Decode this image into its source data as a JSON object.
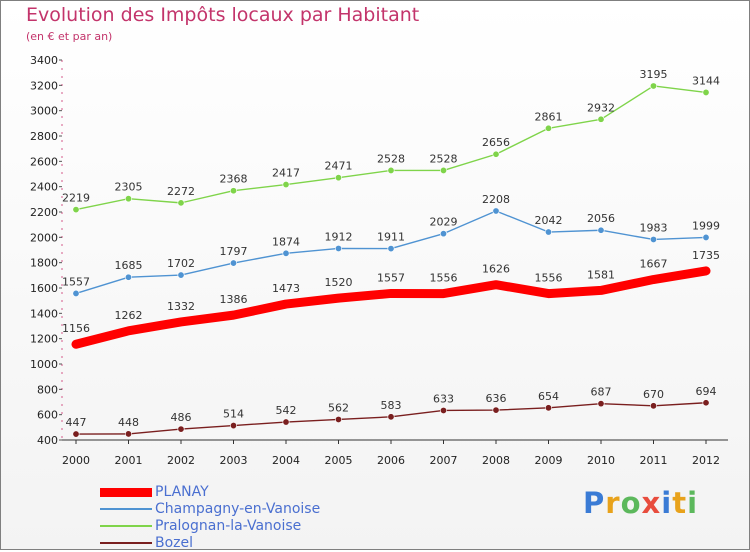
{
  "chart_data": {
    "type": "line",
    "title": "Evolution des Impôts locaux par Habitant",
    "subtitle": "(en € et par an)",
    "x": [
      "2000",
      "2001",
      "2002",
      "2003",
      "2004",
      "2005",
      "2006",
      "2007",
      "2008",
      "2009",
      "2010",
      "2011",
      "2012"
    ],
    "ylim": [
      400,
      3400
    ],
    "yticks": [
      400,
      600,
      800,
      1000,
      1200,
      1400,
      1600,
      1800,
      2000,
      2200,
      2400,
      2600,
      2800,
      3000,
      3200,
      3400
    ],
    "grid": false,
    "legend_position": "bottom-left",
    "series": [
      {
        "name": "PLANAY",
        "color": "#ff0000",
        "highlight": true,
        "values": [
          1156,
          1262,
          1332,
          1386,
          1473,
          1520,
          1557,
          1556,
          1626,
          1556,
          1581,
          1667,
          1735
        ]
      },
      {
        "name": "Champagny-en-Vanoise",
        "color": "#4f93d2",
        "highlight": false,
        "values": [
          1557,
          1685,
          1702,
          1797,
          1874,
          1912,
          1911,
          2029,
          2208,
          2042,
          2056,
          1983,
          1999
        ]
      },
      {
        "name": "Pralognan-la-Vanoise",
        "color": "#7fd44a",
        "highlight": false,
        "values": [
          2219,
          2305,
          2272,
          2368,
          2417,
          2471,
          2528,
          2528,
          2656,
          2861,
          2932,
          3195,
          3144
        ]
      },
      {
        "name": "Bozel",
        "color": "#7a1f1f",
        "highlight": false,
        "values": [
          447,
          448,
          486,
          514,
          542,
          562,
          583,
          633,
          636,
          654,
          687,
          670,
          694
        ]
      }
    ]
  },
  "logo": {
    "text": "Proxiti",
    "letter_colors": [
      "#3a7bd5",
      "#e8a21b",
      "#5cb85c",
      "#e84c3d",
      "#3a7bd5",
      "#e8a21b",
      "#5cb85c"
    ]
  }
}
